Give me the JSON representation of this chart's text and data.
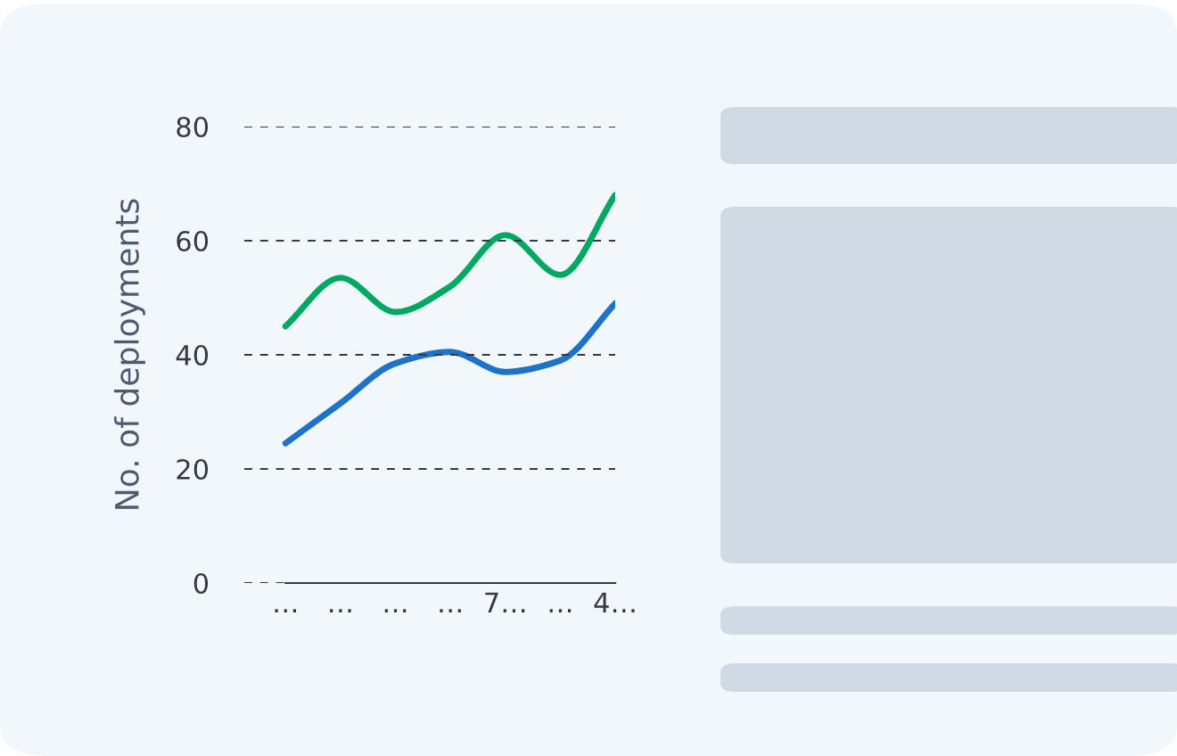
{
  "chart_data": {
    "type": "line",
    "ylabel": "No. of deployments",
    "categories": [
      "…",
      "…",
      "…",
      "…",
      "7…",
      "…",
      "4…"
    ],
    "ylim": [
      0,
      80
    ],
    "yticks": [
      0,
      20,
      40,
      60,
      80
    ],
    "grid": "y",
    "line_style": "solid",
    "series": [
      {
        "color": "#00a862",
        "values": [
          45,
          53.5,
          47.5,
          52,
          61,
          54,
          68
        ]
      },
      {
        "color": "#1e73c8",
        "values": [
          24.5,
          31.5,
          38.5,
          40.5,
          37,
          39,
          49
        ]
      }
    ]
  }
}
